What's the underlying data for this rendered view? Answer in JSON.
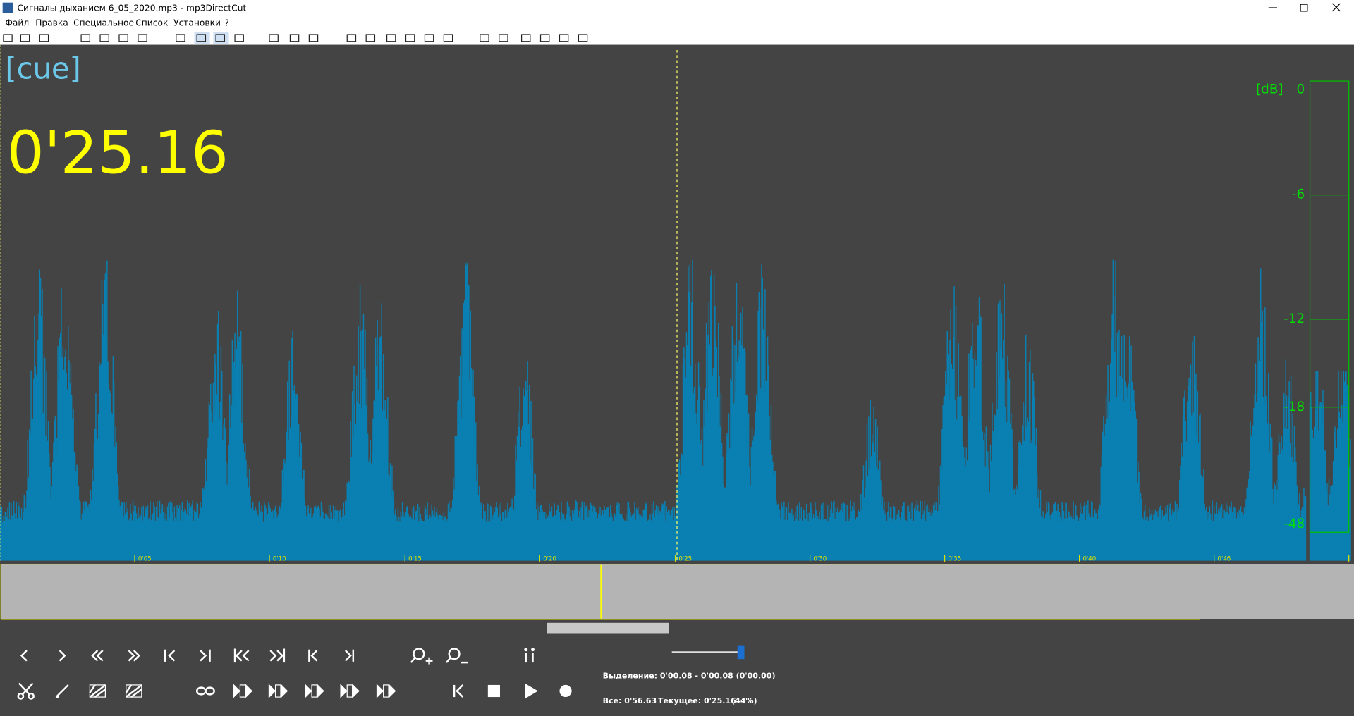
{
  "window": {
    "title": "Сигналы дыханием 6_05_2020.mp3 - mp3DirectCut"
  },
  "menu": [
    "Файл",
    "Правка",
    "Специальное",
    "Список",
    "Установки",
    "?"
  ],
  "display": {
    "cue": "[cue]",
    "time": "0'25.16"
  },
  "meter": {
    "unit": "[dB]",
    "labels": [
      "0",
      "-6",
      "-12",
      "-18",
      "-48"
    ]
  },
  "timeline": [
    "0'05",
    "0'10",
    "0'15",
    "0'20",
    "0'25",
    "0'30",
    "0'35",
    "0'40",
    "0'46"
  ],
  "status": {
    "selection": "Выделение: 0'00.08 - 0'00.08 (0'00.00)",
    "total": "Все: 0'56.63",
    "current": "Текущее: 0'25.16",
    "percent": "(44%)"
  }
}
